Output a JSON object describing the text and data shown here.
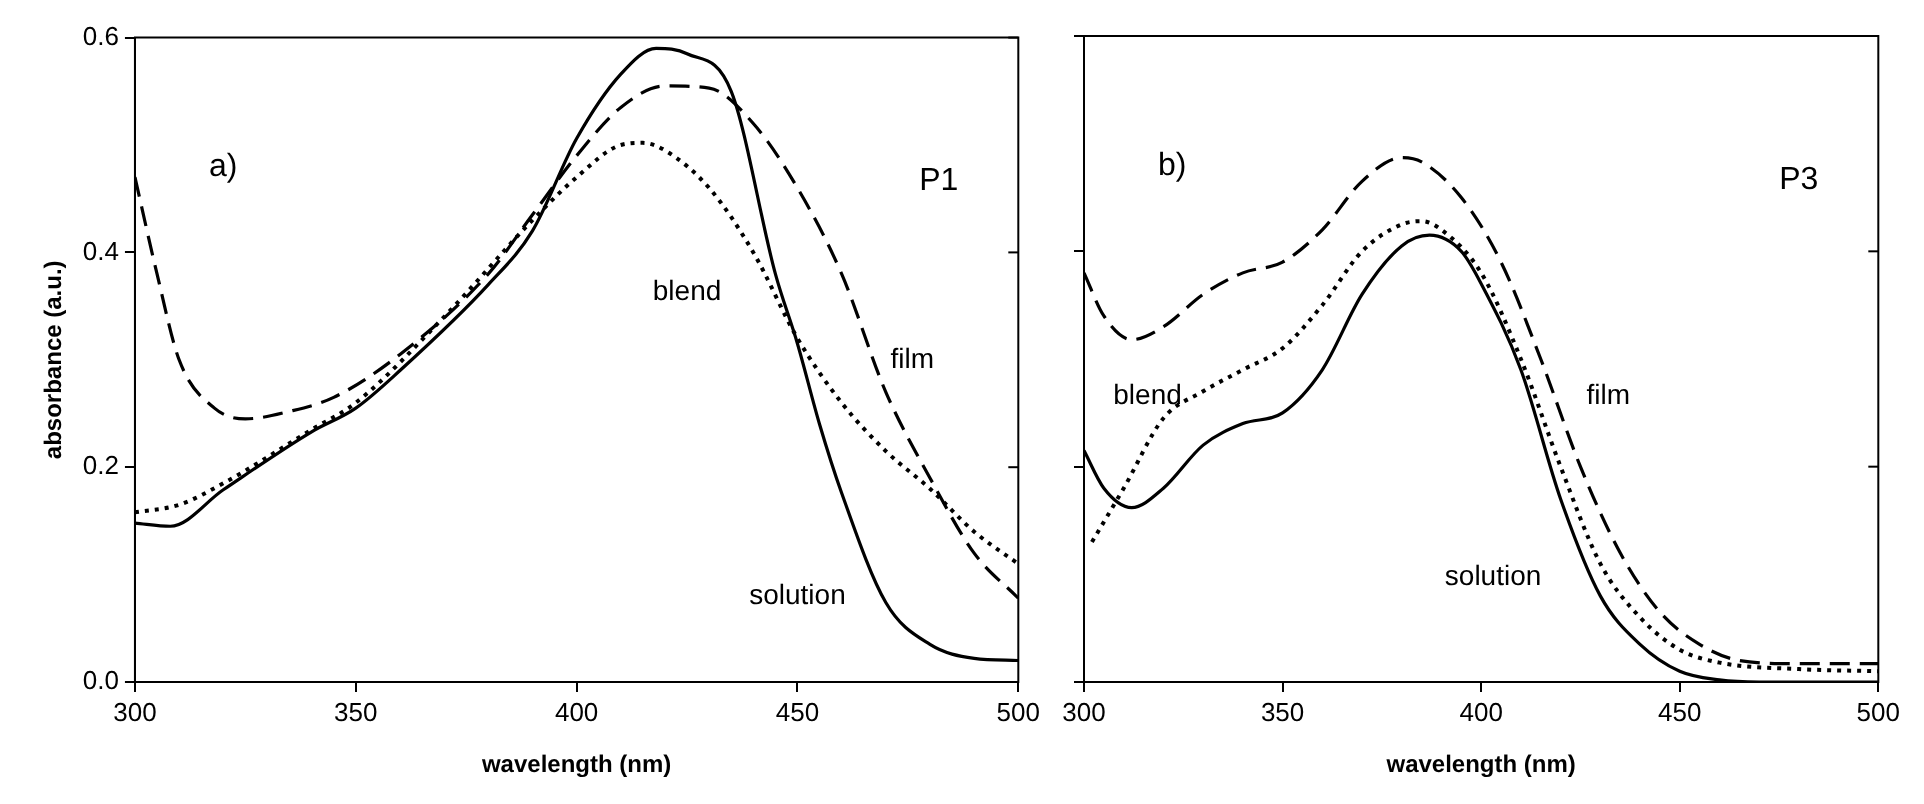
{
  "chart_data": [
    {
      "type": "line",
      "xlabel": "wavelength (nm)",
      "ylabel": "absorbance (a.u.)",
      "xlim": [
        300,
        500
      ],
      "xticks": [
        300,
        350,
        400,
        450,
        500
      ],
      "ylim": [
        0,
        0.6
      ],
      "yticks": [
        {
          "value": 0,
          "label": "0.0"
        },
        {
          "value": 0.2,
          "label": "0.2"
        },
        {
          "value": 0.4,
          "label": "0.4"
        },
        {
          "value": 0.6,
          "label": "0.6"
        }
      ],
      "annotations": [
        "a)",
        "P1"
      ],
      "series": [
        {
          "name": "solution",
          "color": "#000000",
          "line_style": "solid",
          "x": [
            300,
            308,
            320,
            340,
            350,
            360,
            380,
            390,
            400,
            410,
            418,
            425,
            435,
            445,
            450,
            455,
            460,
            470,
            480,
            490,
            500
          ],
          "values": [
            0.148,
            0.145,
            0.179,
            0.233,
            0.255,
            0.29,
            0.37,
            0.42,
            0.506,
            0.566,
            0.59,
            0.585,
            0.55,
            0.38,
            0.315,
            0.24,
            0.176,
            0.074,
            0.035,
            0.022,
            0.02
          ]
        },
        {
          "name": "film",
          "color": "#000000",
          "line_style": "dashed",
          "x": [
            300,
            305,
            310,
            318,
            325,
            335,
            345,
            360,
            380,
            390,
            400,
            410,
            420,
            430,
            440,
            450,
            460,
            470,
            480,
            490,
            500
          ],
          "values": [
            0.47,
            0.38,
            0.3,
            0.255,
            0.245,
            0.252,
            0.265,
            0.305,
            0.38,
            0.435,
            0.49,
            0.535,
            0.555,
            0.553,
            0.52,
            0.46,
            0.38,
            0.27,
            0.19,
            0.12,
            0.078
          ]
        },
        {
          "name": "blend",
          "color": "#000000",
          "line_style": "dotted",
          "x": [
            300,
            310,
            320,
            340,
            350,
            370,
            390,
            400,
            410,
            415,
            420,
            430,
            440,
            450,
            460,
            470,
            480,
            490,
            500
          ],
          "values": [
            0.158,
            0.165,
            0.185,
            0.235,
            0.26,
            0.34,
            0.43,
            0.47,
            0.5,
            0.502,
            0.495,
            0.46,
            0.4,
            0.32,
            0.26,
            0.215,
            0.18,
            0.14,
            0.11
          ]
        }
      ]
    },
    {
      "type": "line",
      "xlabel": "wavelength (nm)",
      "xlim": [
        300,
        500
      ],
      "xticks": [
        300,
        350,
        400,
        450,
        500
      ],
      "ylim": [
        0,
        0.6
      ],
      "yticks": [
        0,
        0.2,
        0.4,
        0.6
      ],
      "tick_labels": "x",
      "annotations": [
        "b)",
        "P3"
      ],
      "series": [
        {
          "name": "solution",
          "color": "#000000",
          "line_style": "solid",
          "x": [
            300,
            305,
            312,
            320,
            330,
            340,
            350,
            360,
            370,
            380,
            387,
            395,
            400,
            410,
            420,
            430,
            440,
            450,
            460,
            470,
            500
          ],
          "values": [
            0.215,
            0.18,
            0.162,
            0.18,
            0.22,
            0.24,
            0.25,
            0.29,
            0.36,
            0.405,
            0.415,
            0.4,
            0.37,
            0.29,
            0.17,
            0.08,
            0.035,
            0.01,
            0.002,
            0,
            0
          ]
        },
        {
          "name": "film",
          "color": "#000000",
          "line_style": "dashed",
          "x": [
            300,
            305,
            312,
            320,
            330,
            340,
            350,
            360,
            370,
            380,
            385,
            395,
            405,
            415,
            425,
            435,
            445,
            455,
            465,
            480,
            500
          ],
          "values": [
            0.38,
            0.34,
            0.318,
            0.33,
            0.36,
            0.38,
            0.39,
            0.42,
            0.465,
            0.487,
            0.483,
            0.45,
            0.39,
            0.3,
            0.2,
            0.12,
            0.065,
            0.035,
            0.02,
            0.017,
            0.017
          ]
        },
        {
          "name": "blend",
          "color": "#000000",
          "line_style": "dotted",
          "x": [
            302,
            310,
            320,
            330,
            340,
            350,
            360,
            370,
            380,
            385,
            390,
            400,
            410,
            420,
            430,
            440,
            450,
            460,
            480,
            500
          ],
          "values": [
            0.13,
            0.18,
            0.245,
            0.27,
            0.29,
            0.31,
            0.35,
            0.4,
            0.425,
            0.428,
            0.42,
            0.38,
            0.3,
            0.2,
            0.11,
            0.06,
            0.03,
            0.018,
            0.012,
            0.01
          ]
        }
      ]
    }
  ]
}
